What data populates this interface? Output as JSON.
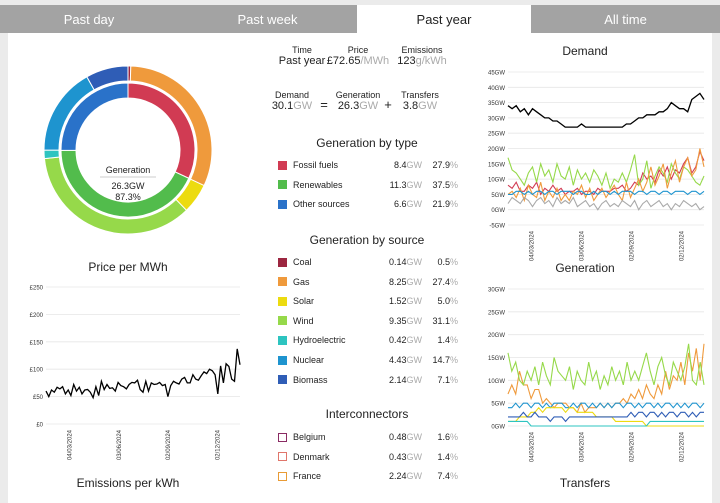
{
  "tabs": [
    {
      "label": "Past day",
      "active": false
    },
    {
      "label": "Past week",
      "active": false
    },
    {
      "label": "Past year",
      "active": true
    },
    {
      "label": "All time",
      "active": false
    }
  ],
  "donut": {
    "label": "Generation",
    "value": "26.3GW",
    "pct": "87.3%"
  },
  "summary": {
    "time_label": "Time",
    "time_value": "Past year",
    "price_label": "Price",
    "price_value": "£72.65",
    "price_unit": "/MWh",
    "emissions_label": "Emissions",
    "emissions_value": "123",
    "emissions_unit": "g/kWh",
    "demand_label": "Demand",
    "demand_value": "30.1",
    "demand_unit": "GW",
    "generation_label": "Generation",
    "generation_value": "26.3",
    "generation_unit": "GW",
    "transfers_label": "Transfers",
    "transfers_value": "3.8",
    "transfers_unit": "GW",
    "eq": "=",
    "plus": "+"
  },
  "gen_by_type": {
    "title": "Generation by type",
    "rows": [
      {
        "name": "Fossil fuels",
        "value": "8.4",
        "unit": "GW",
        "pct": "27.9",
        "pct_unit": "%",
        "color": "#d13b53"
      },
      {
        "name": "Renewables",
        "value": "11.3",
        "unit": "GW",
        "pct": "37.5",
        "pct_unit": "%",
        "color": "#52bc4c"
      },
      {
        "name": "Other sources",
        "value": "6.6",
        "unit": "GW",
        "pct": "21.9",
        "pct_unit": "%",
        "color": "#2a72c9"
      }
    ]
  },
  "gen_by_source": {
    "title": "Generation by source",
    "rows": [
      {
        "name": "Coal",
        "value": "0.14",
        "unit": "GW",
        "pct": "0.5",
        "pct_unit": "%",
        "color": "#9c2640"
      },
      {
        "name": "Gas",
        "value": "8.25",
        "unit": "GW",
        "pct": "27.4",
        "pct_unit": "%",
        "color": "#ef9a3c"
      },
      {
        "name": "Solar",
        "value": "1.52",
        "unit": "GW",
        "pct": "5.0",
        "pct_unit": "%",
        "color": "#ecdb10"
      },
      {
        "name": "Wind",
        "value": "9.35",
        "unit": "GW",
        "pct": "31.1",
        "pct_unit": "%",
        "color": "#96d94a"
      },
      {
        "name": "Hydroelectric",
        "value": "0.42",
        "unit": "GW",
        "pct": "1.4",
        "pct_unit": "%",
        "color": "#2dc4c0"
      },
      {
        "name": "Nuclear",
        "value": "4.43",
        "unit": "GW",
        "pct": "14.7",
        "pct_unit": "%",
        "color": "#1e94cf"
      },
      {
        "name": "Biomass",
        "value": "2.14",
        "unit": "GW",
        "pct": "7.1",
        "pct_unit": "%",
        "color": "#2f5db6"
      }
    ]
  },
  "interconnectors": {
    "title": "Interconnectors",
    "rows": [
      {
        "name": "Belgium",
        "value": "0.48",
        "unit": "GW",
        "pct": "1.6",
        "pct_unit": "%",
        "color": "#8a2b63"
      },
      {
        "name": "Denmark",
        "value": "0.43",
        "unit": "GW",
        "pct": "1.4",
        "pct_unit": "%",
        "color": "#e0766b"
      },
      {
        "name": "France",
        "value": "2.24",
        "unit": "GW",
        "pct": "7.4",
        "pct_unit": "%",
        "color": "#e99b35"
      }
    ]
  },
  "titles": {
    "price": "Price per MWh",
    "emissions": "Emissions per kWh",
    "demand": "Demand",
    "generation": "Generation",
    "transfers": "Transfers"
  },
  "chart_data": [
    {
      "type": "line",
      "title": "Price per MWh",
      "x_ticks": [
        "04/03/2024",
        "03/06/2024",
        "02/09/2024",
        "02/12/2024"
      ],
      "y_ticks": [
        "£0",
        "£50",
        "£100",
        "£150",
        "£200",
        "£250"
      ],
      "ylim": [
        0,
        250
      ],
      "series": [
        {
          "color": "#000000",
          "values": [
            60,
            50,
            62,
            58,
            67,
            64,
            68,
            55,
            62,
            52,
            72,
            60,
            67,
            55,
            62,
            63,
            58,
            48,
            68,
            52,
            78,
            63,
            72,
            65,
            66,
            60,
            76,
            70,
            68,
            64,
            72,
            76,
            75,
            80,
            63,
            58,
            78,
            60,
            75,
            72,
            73,
            76,
            70,
            72,
            50,
            70,
            78,
            75,
            73,
            82,
            85,
            75,
            75,
            90,
            82,
            80,
            88,
            95,
            92,
            100,
            97,
            90,
            55,
            106,
            75,
            110,
            105,
            82,
            78,
            137,
            108
          ]
        }
      ]
    },
    {
      "type": "line",
      "title": "Demand",
      "x_ticks": [
        "04/03/2024",
        "03/06/2024",
        "02/09/2024",
        "02/12/2024"
      ],
      "y_ticks": [
        "-5GW",
        "0GW",
        "5GW",
        "10GW",
        "15GW",
        "20GW",
        "25GW",
        "30GW",
        "35GW",
        "40GW",
        "45GW"
      ],
      "ylim": [
        -5,
        45
      ],
      "series": [
        {
          "color": "#000000",
          "values": [
            34,
            33,
            34,
            32,
            33,
            31,
            33,
            32,
            31,
            30,
            30,
            29,
            29,
            28,
            27,
            27,
            27,
            27,
            28,
            27,
            27,
            27,
            27,
            27,
            27,
            27,
            27,
            27,
            27,
            28,
            28,
            29,
            30,
            30,
            31,
            31,
            31,
            32,
            32,
            33,
            35,
            34,
            33,
            33,
            32,
            36,
            37,
            38,
            36
          ]
        },
        {
          "color": "#d13b53",
          "values": [
            8,
            7,
            9,
            6,
            6,
            8,
            7,
            9,
            5,
            7,
            6,
            8,
            6,
            7,
            5,
            6,
            6,
            7,
            5,
            6,
            6,
            5,
            7,
            6,
            6,
            6,
            7,
            7,
            8,
            6,
            7,
            9,
            8,
            12,
            10,
            11,
            9,
            13,
            11,
            14,
            10,
            13,
            12,
            15,
            17,
            12,
            14,
            19,
            16
          ]
        },
        {
          "color": "#96d94a",
          "values": [
            17,
            13,
            12,
            10,
            8,
            12,
            14,
            9,
            15,
            11,
            13,
            9,
            15,
            11,
            10,
            14,
            8,
            13,
            10,
            12,
            9,
            13,
            11,
            8,
            12,
            7,
            10,
            9,
            12,
            9,
            13,
            18,
            8,
            10,
            16,
            7,
            11,
            14,
            12,
            9,
            15,
            12,
            10,
            14,
            13,
            11,
            9,
            8,
            11
          ]
        },
        {
          "color": "#ef9a3c",
          "values": [
            5,
            6,
            4,
            7,
            3,
            8,
            5,
            4,
            9,
            3,
            6,
            4,
            7,
            3,
            5,
            3,
            6,
            5,
            8,
            4,
            7,
            3,
            5,
            7,
            4,
            6,
            8,
            5,
            3,
            9,
            4,
            7,
            10,
            6,
            9,
            14,
            8,
            11,
            15,
            7,
            12,
            16,
            9,
            14,
            17,
            11,
            13,
            20,
            14
          ]
        },
        {
          "color": "#1e94cf",
          "values": [
            5,
            5,
            6,
            6,
            5,
            6,
            5,
            6,
            6,
            5,
            6,
            6,
            5,
            6,
            6,
            6,
            5,
            6,
            6,
            5,
            5,
            6,
            5,
            6,
            6,
            5,
            6,
            5,
            6,
            6,
            6,
            5,
            6,
            6,
            5,
            6,
            6,
            5,
            6,
            6,
            5,
            6,
            6,
            6,
            5,
            6,
            6,
            5,
            6
          ]
        },
        {
          "color": "#aaaaaa",
          "values": [
            2,
            4,
            3,
            2,
            4,
            3,
            1,
            3,
            4,
            2,
            3,
            1,
            4,
            2,
            3,
            2,
            4,
            1,
            2,
            3,
            1,
            2,
            0,
            2,
            3,
            1,
            2,
            1,
            3,
            2,
            1,
            3,
            0,
            2,
            3,
            1,
            2,
            3,
            1,
            2,
            0,
            2,
            1,
            3,
            2,
            1,
            2,
            0,
            1
          ]
        }
      ]
    },
    {
      "type": "line",
      "title": "Generation",
      "x_ticks": [
        "04/03/2024",
        "03/06/2024",
        "02/09/2024",
        "02/12/2024"
      ],
      "y_ticks": [
        "0GW",
        "5GW",
        "10GW",
        "15GW",
        "20GW",
        "25GW",
        "30GW"
      ],
      "ylim": [
        0,
        30
      ],
      "series": [
        {
          "color": "#ef9a3c",
          "values": [
            7,
            9,
            7,
            12,
            9,
            9,
            6,
            8,
            8,
            5,
            6,
            5,
            4,
            5,
            5,
            5,
            4,
            4,
            3,
            5,
            3,
            4,
            4,
            4,
            5,
            4,
            5,
            4,
            5,
            5,
            6,
            5,
            7,
            6,
            8,
            6,
            9,
            7,
            6,
            9,
            7,
            12,
            8,
            11,
            10,
            14,
            9,
            16,
            12,
            17,
            10,
            18
          ]
        },
        {
          "color": "#96d94a",
          "values": [
            16,
            12,
            14,
            10,
            9,
            12,
            10,
            13,
            9,
            14,
            11,
            9,
            15,
            12,
            11,
            10,
            13,
            8,
            12,
            10,
            9,
            14,
            10,
            12,
            8,
            11,
            9,
            13,
            10,
            12,
            9,
            14,
            10,
            12,
            10,
            13,
            16,
            12,
            9,
            13,
            15,
            11,
            9,
            14,
            12,
            10,
            13,
            18,
            10,
            9,
            14,
            9
          ]
        },
        {
          "color": "#1e94cf",
          "values": [
            4,
            4,
            5,
            4,
            5,
            5,
            4,
            5,
            5,
            4,
            5,
            4,
            5,
            5,
            5,
            4,
            4,
            5,
            4,
            5,
            5,
            4,
            5,
            4,
            5,
            4,
            5,
            4,
            5,
            5,
            4,
            5,
            5,
            4,
            5,
            4,
            5,
            5,
            4,
            5,
            4,
            5,
            5,
            4,
            5,
            4,
            5,
            4,
            5,
            5,
            4,
            5
          ]
        },
        {
          "color": "#ecdb10",
          "values": [
            1,
            1,
            1,
            2,
            2,
            2,
            3,
            3,
            4,
            3,
            4,
            4,
            4,
            4,
            4,
            3,
            4,
            4,
            3,
            3,
            3,
            3,
            3,
            2,
            2,
            2,
            2,
            2,
            1,
            1,
            1,
            1,
            1,
            1,
            1,
            1,
            0,
            0,
            0,
            0,
            0,
            0,
            0,
            0,
            0,
            0,
            0,
            0,
            0,
            0,
            0,
            0
          ]
        },
        {
          "color": "#2f5db6",
          "values": [
            2,
            2,
            2,
            2,
            3,
            2,
            2,
            3,
            2,
            2,
            2,
            1,
            2,
            2,
            2,
            1,
            2,
            2,
            2,
            2,
            2,
            2,
            2,
            2,
            2,
            2,
            2,
            2,
            2,
            2,
            2,
            2,
            3,
            2,
            3,
            3,
            2,
            3,
            3,
            2,
            3,
            2,
            3,
            3,
            2,
            3,
            3,
            2,
            3,
            2,
            3,
            3
          ]
        },
        {
          "color": "#2dc4c0",
          "values": [
            1,
            1,
            1,
            1,
            1,
            1,
            0,
            0,
            0,
            0,
            0,
            0,
            0,
            0,
            0,
            0,
            0,
            0,
            0,
            0,
            0,
            0,
            0,
            0,
            0,
            0,
            0,
            0,
            0,
            0,
            0,
            0,
            0,
            0,
            0,
            0,
            0,
            1,
            1,
            1,
            1,
            1,
            1,
            1,
            1,
            1,
            1,
            1,
            1,
            1,
            1,
            1
          ]
        }
      ]
    }
  ]
}
